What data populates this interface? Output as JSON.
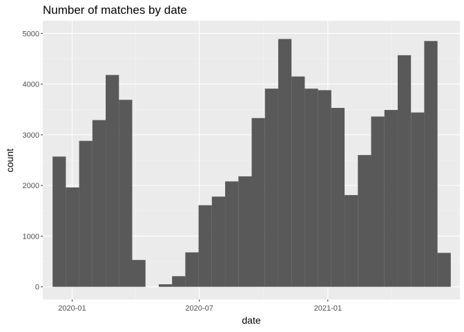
{
  "chart_data": {
    "type": "bar",
    "title": "Number of matches by date",
    "xlabel": "date",
    "ylabel": "count",
    "bin_width_days": 19,
    "first_bin_start": "2019-12-04",
    "bins": [
      {
        "start": "2019-12-04",
        "count": 2570
      },
      {
        "start": "2019-12-23",
        "count": 1960
      },
      {
        "start": "2020-01-11",
        "count": 2880
      },
      {
        "start": "2020-01-30",
        "count": 3290
      },
      {
        "start": "2020-02-18",
        "count": 4180
      },
      {
        "start": "2020-03-08",
        "count": 3690
      },
      {
        "start": "2020-03-27",
        "count": 530
      },
      {
        "start": "2020-04-15",
        "count": 0
      },
      {
        "start": "2020-05-04",
        "count": 50
      },
      {
        "start": "2020-05-23",
        "count": 210
      },
      {
        "start": "2020-06-11",
        "count": 680
      },
      {
        "start": "2020-06-30",
        "count": 1610
      },
      {
        "start": "2020-07-19",
        "count": 1780
      },
      {
        "start": "2020-08-07",
        "count": 2080
      },
      {
        "start": "2020-08-26",
        "count": 2180
      },
      {
        "start": "2020-09-14",
        "count": 3330
      },
      {
        "start": "2020-10-03",
        "count": 3910
      },
      {
        "start": "2020-10-22",
        "count": 4890
      },
      {
        "start": "2020-11-10",
        "count": 4150
      },
      {
        "start": "2020-11-29",
        "count": 3910
      },
      {
        "start": "2020-12-18",
        "count": 3880
      },
      {
        "start": "2021-01-06",
        "count": 3530
      },
      {
        "start": "2021-01-25",
        "count": 1810
      },
      {
        "start": "2021-02-13",
        "count": 2600
      },
      {
        "start": "2021-03-04",
        "count": 3360
      },
      {
        "start": "2021-03-23",
        "count": 3490
      },
      {
        "start": "2021-04-11",
        "count": 4570
      },
      {
        "start": "2021-04-30",
        "count": 3440
      },
      {
        "start": "2021-05-19",
        "count": 4850
      },
      {
        "start": "2021-06-07",
        "count": 670
      }
    ],
    "x_ticks": [
      {
        "date": "2020-01-01",
        "label": "2020-01"
      },
      {
        "date": "2020-07-01",
        "label": "2020-07"
      },
      {
        "date": "2021-01-01",
        "label": "2021-01"
      }
    ],
    "y_ticks": [
      0,
      1000,
      2000,
      3000,
      4000,
      5000
    ],
    "xlim": [
      "2019-11-20",
      "2021-07-09"
    ],
    "ylim": [
      -250,
      5250
    ],
    "grid": true,
    "legend": "none",
    "colors": {
      "panel": "#ebebeb",
      "bar": "#595959",
      "grid_major": "#ffffff",
      "grid_minor": "#f5f5f5",
      "tick": "#333333"
    }
  }
}
